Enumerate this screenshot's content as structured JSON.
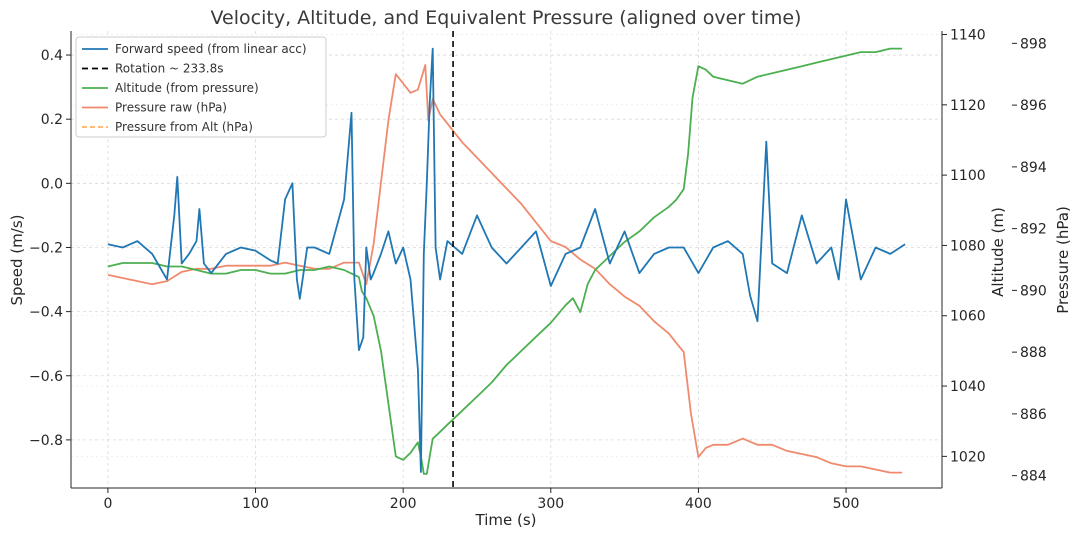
{
  "chart_data": {
    "type": "line",
    "title": "Velocity, Altitude, and Equivalent Pressure (aligned over time)",
    "xlabel": "Time (s)",
    "ylabel_left": "Speed (m/s)",
    "ylabel_right1": "Altitude (m)",
    "ylabel_right2": "Pressure (hPa)",
    "xlim": [
      -25,
      565
    ],
    "ylim_left": [
      -0.95,
      0.475
    ],
    "ylim_alt": [
      1011,
      1141
    ],
    "ylim_pressure": [
      883.6,
      898.4
    ],
    "x_ticks": [
      "0",
      "100",
      "200",
      "300",
      "400",
      "500"
    ],
    "left_ticks": [
      "0.4",
      "0.2",
      "0.0",
      "−0.2",
      "−0.4",
      "−0.6",
      "−0.8"
    ],
    "alt_ticks": [
      "1140",
      "1120",
      "1100",
      "1080",
      "1060",
      "1040",
      "1020"
    ],
    "pressure_ticks": [
      "898",
      "896",
      "894",
      "892",
      "890",
      "888",
      "886",
      "884"
    ],
    "grid": true,
    "legend_position": "top-left",
    "annotations": [
      {
        "type": "vline",
        "x": 233.8,
        "label": "Rotation ~ 233.8s"
      }
    ],
    "series": [
      {
        "name": "Forward speed (from linear acc)",
        "axis": "left",
        "color": "#1f77b4",
        "x": [
          0,
          10,
          20,
          30,
          40,
          45,
          47,
          50,
          55,
          60,
          62,
          65,
          70,
          80,
          90,
          100,
          110,
          115,
          120,
          125,
          128,
          130,
          135,
          140,
          150,
          160,
          165,
          167,
          170,
          173,
          175,
          178,
          180,
          185,
          190,
          195,
          200,
          205,
          210,
          212,
          214,
          216,
          218,
          220,
          222,
          225,
          230,
          235,
          240,
          250,
          260,
          270,
          280,
          290,
          300,
          310,
          320,
          330,
          340,
          350,
          360,
          370,
          380,
          390,
          400,
          410,
          420,
          430,
          435,
          440,
          443,
          446,
          450,
          460,
          470,
          480,
          490,
          495,
          500,
          510,
          520,
          530,
          540
        ],
        "y": [
          -0.19,
          -0.2,
          -0.18,
          -0.22,
          -0.3,
          -0.1,
          0.02,
          -0.25,
          -0.22,
          -0.18,
          -0.08,
          -0.25,
          -0.28,
          -0.22,
          -0.2,
          -0.21,
          -0.24,
          -0.25,
          -0.05,
          0.0,
          -0.3,
          -0.36,
          -0.2,
          -0.2,
          -0.22,
          -0.05,
          0.22,
          -0.3,
          -0.52,
          -0.48,
          -0.2,
          -0.3,
          -0.28,
          -0.22,
          -0.15,
          -0.25,
          -0.2,
          -0.3,
          -0.58,
          -0.9,
          -0.22,
          0.0,
          0.25,
          0.42,
          -0.2,
          -0.3,
          -0.18,
          -0.2,
          -0.22,
          -0.1,
          -0.2,
          -0.25,
          -0.2,
          -0.15,
          -0.32,
          -0.22,
          -0.2,
          -0.08,
          -0.25,
          -0.15,
          -0.28,
          -0.22,
          -0.2,
          -0.2,
          -0.28,
          -0.2,
          -0.18,
          -0.22,
          -0.35,
          -0.43,
          -0.15,
          0.13,
          -0.25,
          -0.28,
          -0.1,
          -0.25,
          -0.2,
          -0.3,
          -0.05,
          -0.3,
          -0.2,
          -0.22,
          -0.19
        ]
      },
      {
        "name": "Rotation ~ 233.8s",
        "axis": "none",
        "color": "#000000",
        "dash": "6 4"
      },
      {
        "name": "Altitude (from pressure)",
        "axis": "alt",
        "color": "#4caf50",
        "x": [
          0,
          10,
          20,
          30,
          40,
          50,
          60,
          70,
          80,
          90,
          100,
          110,
          120,
          130,
          140,
          150,
          160,
          165,
          170,
          172,
          175,
          180,
          185,
          190,
          195,
          200,
          205,
          210,
          212,
          214,
          216,
          218,
          220,
          225,
          230,
          235,
          240,
          250,
          260,
          270,
          280,
          290,
          300,
          310,
          315,
          320,
          325,
          330,
          340,
          350,
          360,
          370,
          380,
          385,
          390,
          393,
          396,
          400,
          405,
          410,
          420,
          430,
          440,
          450,
          460,
          470,
          480,
          490,
          500,
          510,
          520,
          530,
          538
        ],
        "y": [
          1074,
          1075,
          1075,
          1075,
          1074,
          1074,
          1073,
          1072,
          1072,
          1073,
          1073,
          1072,
          1072,
          1073,
          1073,
          1074,
          1073,
          1072,
          1071,
          1067,
          1065,
          1060,
          1050,
          1035,
          1020,
          1019,
          1021,
          1024,
          1020,
          1015,
          1015,
          1020,
          1025,
          1027,
          1029,
          1031,
          1033,
          1037,
          1041,
          1046,
          1050,
          1054,
          1058,
          1063,
          1065,
          1061,
          1069,
          1073,
          1077,
          1081,
          1084,
          1088,
          1091,
          1093,
          1096,
          1106,
          1122,
          1131,
          1130,
          1128,
          1127,
          1126,
          1128,
          1129,
          1130,
          1131,
          1132,
          1133,
          1134,
          1135,
          1135,
          1136,
          1136
        ]
      },
      {
        "name": "Pressure raw (hPa)",
        "axis": "pressure",
        "color": "#f08a6e",
        "x": [
          0,
          10,
          20,
          30,
          40,
          50,
          60,
          70,
          80,
          90,
          100,
          110,
          120,
          130,
          140,
          150,
          160,
          170,
          175,
          180,
          185,
          190,
          195,
          200,
          205,
          210,
          215,
          217,
          220,
          225,
          230,
          235,
          240,
          250,
          260,
          270,
          280,
          290,
          300,
          310,
          320,
          330,
          340,
          350,
          360,
          370,
          380,
          385,
          390,
          395,
          400,
          405,
          410,
          420,
          430,
          440,
          450,
          460,
          470,
          480,
          490,
          500,
          510,
          520,
          530,
          538
        ],
        "y": [
          890.5,
          890.4,
          890.3,
          890.2,
          890.3,
          890.6,
          890.7,
          890.7,
          890.8,
          890.8,
          890.8,
          890.8,
          890.9,
          890.8,
          890.7,
          890.7,
          890.9,
          890.9,
          890.2,
          891.5,
          893.5,
          895.5,
          897.0,
          896.7,
          896.4,
          896.5,
          897.3,
          895.5,
          896.2,
          895.7,
          895.4,
          895.1,
          894.8,
          894.3,
          893.8,
          893.3,
          892.8,
          892.2,
          891.6,
          891.4,
          891.0,
          890.7,
          890.2,
          889.8,
          889.5,
          889.0,
          888.6,
          888.3,
          888.0,
          886.0,
          884.6,
          884.9,
          885.0,
          885.0,
          885.2,
          885.0,
          885.0,
          884.8,
          884.7,
          884.6,
          884.4,
          884.3,
          884.3,
          884.2,
          884.1,
          884.1
        ]
      },
      {
        "name": "Pressure from Alt (hPa)",
        "axis": "pressure",
        "color": "#ffb266",
        "dash": "5 3",
        "x": [],
        "y": []
      }
    ]
  }
}
